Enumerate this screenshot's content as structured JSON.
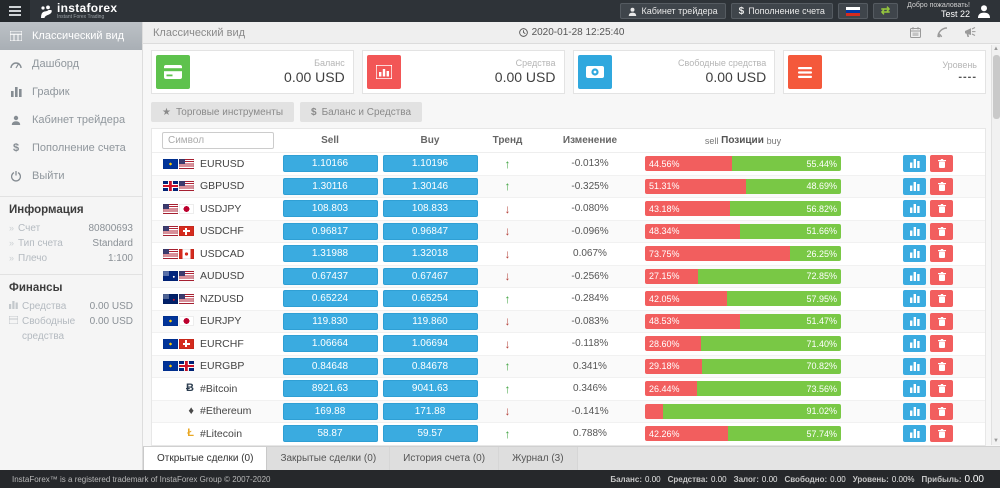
{
  "topbar": {
    "logo_name": "instaforex",
    "logo_subtitle": "Instant Forex Trading",
    "trader_cabinet_label": "Кабинет трейдера",
    "deposit_label": "Пополнение счета",
    "deposit_icon": "$",
    "flag_icon": "russian-flag",
    "exchange_icon_glyph": "⇄",
    "welcome_text": "Добро пожаловать!",
    "username": "Test 22"
  },
  "sidebar": {
    "items": [
      {
        "label": "Классический вид",
        "icon": "classic-view-icon",
        "active": true
      },
      {
        "label": "Дашборд",
        "icon": "dashboard-icon"
      },
      {
        "label": "График",
        "icon": "chart-icon"
      },
      {
        "label": "Кабинет трейдера",
        "icon": "user-icon"
      },
      {
        "label": "Пополнение счета",
        "icon": "dollar-icon"
      },
      {
        "label": "Выйти",
        "icon": "power-icon"
      }
    ],
    "info_section": {
      "title": "Информация",
      "rows": [
        {
          "bullet": "»",
          "label": "Счет",
          "value": "80800693"
        },
        {
          "bullet": "»",
          "label": "Тип счета",
          "value": "Standard"
        },
        {
          "bullet": "»",
          "label": "Плечо",
          "value": "1:100"
        }
      ]
    },
    "finance_section": {
      "title": "Финансы",
      "rows": [
        {
          "icon": "funds-icon",
          "label": "Средства",
          "value": "0.00 USD"
        },
        {
          "icon": "free-funds-icon",
          "label": "Свободные средства",
          "value": "0.00 USD"
        }
      ]
    }
  },
  "header": {
    "title": "Классический вид",
    "datetime": "2020-01-28 12:25:40",
    "icons": [
      "calendar-icon",
      "rss-icon",
      "announcement-icon"
    ]
  },
  "cards": [
    {
      "label": "Баланс",
      "value": "0.00 USD",
      "icon": "credit-card-icon",
      "color": "#5ec24d"
    },
    {
      "label": "Средства",
      "value": "0.00 USD",
      "icon": "bar-chart-icon",
      "color": "#f25656"
    },
    {
      "label": "Свободные средства",
      "value": "0.00 USD",
      "icon": "banknote-icon",
      "color": "#30a8de"
    },
    {
      "label": "Уровень",
      "value": "----",
      "icon": "menu-lines-icon",
      "color": "#f4593b"
    }
  ],
  "filters": [
    {
      "icon_glyph": "★",
      "label": "Торговые инструменты"
    },
    {
      "icon_glyph": "$",
      "label": "Баланс и Средства"
    }
  ],
  "table": {
    "search_placeholder": "Символ",
    "headers": {
      "sell": "Sell",
      "buy": "Buy",
      "trend": "Тренд",
      "change": "Изменение"
    },
    "positions_header": {
      "left": "sell",
      "mid": "Позиции",
      "right": "buy"
    },
    "arrow_up": "↑",
    "arrow_down": "↓",
    "rows": [
      {
        "symbol": "EURUSD",
        "flags": [
          "eu",
          "us"
        ],
        "sell": "1.10166",
        "buy": "1.10196",
        "trend": "up",
        "change": "-0.013%",
        "sell_pct": 44.56,
        "buy_pct": 55.44,
        "sell_label": "44.56%",
        "buy_label": "55.44%"
      },
      {
        "symbol": "GBPUSD",
        "flags": [
          "gb",
          "us"
        ],
        "sell": "1.30116",
        "buy": "1.30146",
        "trend": "up",
        "change": "-0.325%",
        "sell_pct": 51.31,
        "buy_pct": 48.69,
        "sell_label": "51.31%",
        "buy_label": "48.69%"
      },
      {
        "symbol": "USDJPY",
        "flags": [
          "us",
          "jp"
        ],
        "sell": "108.803",
        "buy": "108.833",
        "trend": "down",
        "change": "-0.080%",
        "sell_pct": 43.18,
        "buy_pct": 56.82,
        "sell_label": "43.18%",
        "buy_label": "56.82%"
      },
      {
        "symbol": "USDCHF",
        "flags": [
          "us",
          "ch"
        ],
        "sell": "0.96817",
        "buy": "0.96847",
        "trend": "down",
        "change": "-0.096%",
        "sell_pct": 48.34,
        "buy_pct": 51.66,
        "sell_label": "48.34%",
        "buy_label": "51.66%"
      },
      {
        "symbol": "USDCAD",
        "flags": [
          "us",
          "ca"
        ],
        "sell": "1.31988",
        "buy": "1.32018",
        "trend": "down",
        "change": "0.067%",
        "sell_pct": 73.75,
        "buy_pct": 26.25,
        "sell_label": "73.75%",
        "buy_label": "26.25%"
      },
      {
        "symbol": "AUDUSD",
        "flags": [
          "au",
          "us"
        ],
        "sell": "0.67437",
        "buy": "0.67467",
        "trend": "down",
        "change": "-0.256%",
        "sell_pct": 27.15,
        "buy_pct": 72.85,
        "sell_label": "27.15%",
        "buy_label": "72.85%"
      },
      {
        "symbol": "NZDUSD",
        "flags": [
          "nz",
          "us"
        ],
        "sell": "0.65224",
        "buy": "0.65254",
        "trend": "up",
        "change": "-0.284%",
        "sell_pct": 42.05,
        "buy_pct": 57.95,
        "sell_label": "42.05%",
        "buy_label": "57.95%"
      },
      {
        "symbol": "EURJPY",
        "flags": [
          "eu",
          "jp"
        ],
        "sell": "119.830",
        "buy": "119.860",
        "trend": "down",
        "change": "-0.083%",
        "sell_pct": 48.53,
        "buy_pct": 51.47,
        "sell_label": "48.53%",
        "buy_label": "51.47%"
      },
      {
        "symbol": "EURCHF",
        "flags": [
          "eu",
          "ch"
        ],
        "sell": "1.06664",
        "buy": "1.06694",
        "trend": "down",
        "change": "-0.118%",
        "sell_pct": 28.6,
        "buy_pct": 71.4,
        "sell_label": "28.60%",
        "buy_label": "71.40%"
      },
      {
        "symbol": "EURGBP",
        "flags": [
          "eu",
          "gb"
        ],
        "sell": "0.84648",
        "buy": "0.84678",
        "trend": "up",
        "change": "0.341%",
        "sell_pct": 29.18,
        "buy_pct": 70.82,
        "sell_label": "29.18%",
        "buy_label": "70.82%"
      },
      {
        "symbol": "#Bitcoin",
        "crypto": {
          "glyph": "Ƀ",
          "color": "#2d3e50",
          "name": "bitcoin-icon"
        },
        "sell": "8921.63",
        "buy": "9041.63",
        "trend": "up",
        "change": "0.346%",
        "sell_pct": 26.44,
        "buy_pct": 73.56,
        "sell_label": "26.44%",
        "buy_label": "73.56%"
      },
      {
        "symbol": "#Ethereum",
        "crypto": {
          "glyph": "♦",
          "color": "#4a4a4a",
          "name": "ethereum-icon"
        },
        "sell": "169.88",
        "buy": "171.88",
        "trend": "down",
        "change": "-0.141%",
        "sell_pct": 8.98,
        "buy_pct": 91.02,
        "sell_label": "",
        "buy_label": "91.02%"
      },
      {
        "symbol": "#Litecoin",
        "crypto": {
          "glyph": "Ł",
          "color": "#e9a825",
          "name": "litecoin-icon"
        },
        "sell": "58.87",
        "buy": "59.57",
        "trend": "up",
        "change": "0.788%",
        "sell_pct": 42.26,
        "buy_pct": 57.74,
        "sell_label": "42.26%",
        "buy_label": "57.74%"
      },
      {
        "symbol": "",
        "sell": "",
        "buy": "",
        "trend": "up",
        "change": "",
        "sell_pct": 4,
        "buy_pct": 96,
        "sell_label": "",
        "buy_label": ""
      }
    ]
  },
  "tabs": [
    {
      "label": "Открытые сделки (0)",
      "active": true
    },
    {
      "label": "Закрытые сделки (0)"
    },
    {
      "label": "История счета (0)"
    },
    {
      "label": "Журнал (3)"
    }
  ],
  "footer": {
    "trademark": "InstaForex™ is a registered trademark of InstaForex Group © 2007-2020",
    "stats": [
      {
        "label": "Баланс:",
        "value": "0.00"
      },
      {
        "label": "Средства:",
        "value": "0.00"
      },
      {
        "label": "Залог:",
        "value": "0.00"
      },
      {
        "label": "Свободно:",
        "value": "0.00"
      },
      {
        "label": "Уровень:",
        "value": "0.00%"
      },
      {
        "label": "Прибыль:",
        "value": "0.00"
      }
    ]
  }
}
